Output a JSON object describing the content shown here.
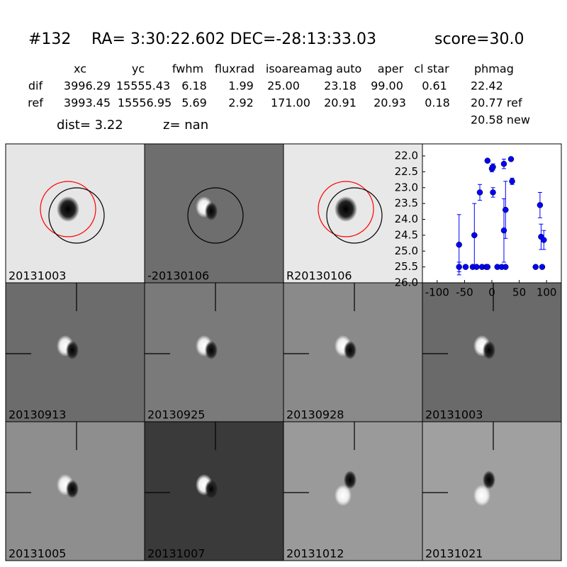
{
  "header": {
    "id": "#132",
    "coords": "RA= 3:30:22.602 DEC=-28:13:33.03",
    "score": "score=30.0"
  },
  "table": {
    "columns": [
      "xc",
      "yc",
      "fwhm",
      "fluxrad",
      "isoarea",
      "mag auto",
      "aper",
      "cl star",
      "phmag"
    ],
    "rows": [
      [
        "dif",
        "3996.29",
        "15555.43",
        "6.18",
        "1.99",
        "25.00",
        "23.18",
        "99.00",
        "0.61",
        "22.42"
      ],
      [
        "ref",
        "3993.45",
        "15556.95",
        "5.69",
        "2.92",
        "171.00",
        "20.91",
        "20.93",
        "0.18",
        "20.77 ref"
      ]
    ],
    "extra": "20.58 new"
  },
  "info": {
    "dist": "dist=  3.22",
    "z": "z=   nan"
  },
  "stamps": [
    {
      "label": "20131003",
      "color": "#000000"
    },
    {
      "label": "-20130106",
      "color": "#000000"
    },
    {
      "label": "R20130106",
      "color": "#000000"
    },
    {
      "label": "20130913",
      "color": "#000000"
    },
    {
      "label": "20130925",
      "color": "#000000"
    },
    {
      "label": "20130928",
      "color": "#000000"
    },
    {
      "label": "20131003",
      "color": "#ff0000"
    },
    {
      "label": "20131005",
      "color": "#000000"
    },
    {
      "label": "20131007",
      "color": "#000000"
    },
    {
      "label": "20131012",
      "color": "#000000"
    },
    {
      "label": "20131021",
      "color": "#000000"
    }
  ],
  "chart_data": {
    "type": "scatter",
    "color": "#0000ff",
    "x": [
      -60,
      -60,
      -48,
      -35,
      -32,
      -28,
      -22,
      -18,
      -10,
      -8,
      -8,
      0,
      2,
      2,
      10,
      18,
      22,
      22,
      25,
      25,
      35,
      37,
      80,
      88,
      90,
      92,
      95
    ],
    "values": [
      25.5,
      24.8,
      25.5,
      25.5,
      24.5,
      25.5,
      23.15,
      25.5,
      25.5,
      25.5,
      22.15,
      22.4,
      22.35,
      23.15,
      25.5,
      25.5,
      22.25,
      24.35,
      23.7,
      25.5,
      22.1,
      22.8,
      25.5,
      23.55,
      24.55,
      25.5,
      24.65
    ],
    "errors": [
      0.15,
      0.95,
      0.05,
      0.05,
      1.0,
      0.05,
      0.25,
      0.05,
      0.05,
      0.05,
      0.05,
      0.1,
      0.1,
      0.15,
      0.05,
      0.05,
      0.15,
      1.0,
      0.9,
      0.05,
      0.05,
      0.1,
      0.05,
      0.4,
      0.4,
      0.05,
      0.3
    ],
    "xlim": [
      -127,
      127
    ],
    "ylim": [
      26.0,
      21.62
    ],
    "xticks": [
      -100,
      -50,
      0,
      50,
      100
    ],
    "yticks": [
      {
        "value": 22.0,
        "label": "22.0"
      },
      {
        "value": 22.5,
        "label": "22.5"
      },
      {
        "value": 23.0,
        "label": "23.0"
      },
      {
        "value": 23.5,
        "label": "23.5"
      },
      {
        "value": 24.0,
        "label": "24.0"
      },
      {
        "value": 24.5,
        "label": "24.5"
      },
      {
        "value": 25.0,
        "label": "25.0"
      },
      {
        "value": 25.5,
        "label": "25.5"
      },
      {
        "value": 26.0,
        "label": "26.0"
      }
    ]
  }
}
